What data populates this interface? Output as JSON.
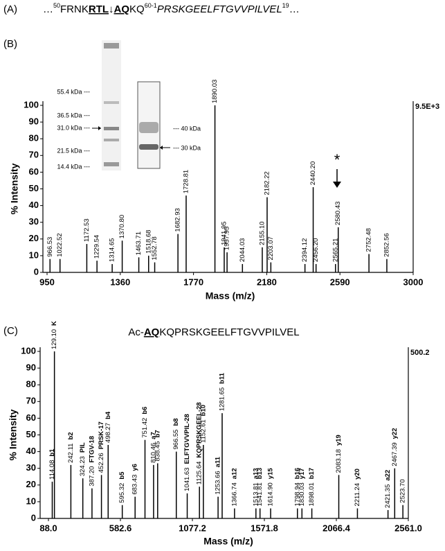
{
  "panel_a": {
    "label": "(A)",
    "parts": [
      "…",
      "50",
      "FRNK",
      "RTL",
      "↓",
      "AQ",
      "KQ",
      "60",
      "-1",
      "PRSKGEELFTGVVPILVEL",
      "19",
      "…"
    ]
  },
  "chart_data": [
    {
      "type": "stem",
      "panel": "(B)",
      "xlabel": "Mass (m/z)",
      "ylabel": "% Intensity",
      "scale_label": "9.5E+3",
      "marker": "*",
      "color": "#000000",
      "xlim": [
        950,
        3000
      ],
      "xticks": [
        950,
        1360,
        1770,
        2180,
        2590,
        3000
      ],
      "ylim": [
        0,
        100
      ],
      "yticks": [
        0,
        10,
        20,
        30,
        40,
        50,
        60,
        70,
        80,
        90,
        100
      ],
      "x": [
        966.53,
        1022.52,
        1172.53,
        1229.54,
        1314.65,
        1370.8,
        1463.71,
        1518.68,
        1552.78,
        1682.93,
        1728.81,
        1890.03,
        1941.95,
        1957.95,
        2044.03,
        2155.1,
        2182.22,
        2203.07,
        2394.12,
        2440.2,
        2456.2,
        2565.21,
        2580.43,
        2752.48,
        2852.56
      ],
      "x_labels": [
        "966.53",
        "1022.52",
        "1172.53",
        "1229.54",
        "1314.65",
        "1370.80",
        "1463.71",
        "1518.68",
        "1552.78",
        "1682.93",
        "1728.81",
        "1890.03",
        "1941.95",
        "1957.95",
        "2044.03",
        "2155.10",
        "2182.22",
        "2203.07",
        "2394.12",
        "2440.20",
        "2456.20",
        "2565.21",
        "2580.43",
        "2752.48",
        "2852.56"
      ],
      "values": [
        8,
        8,
        17,
        7,
        5,
        19,
        9,
        10,
        6,
        23,
        46,
        100,
        15,
        12,
        5,
        15,
        45,
        6,
        5,
        51,
        5,
        5,
        27,
        11,
        8
      ],
      "gel": {
        "left_markers": [
          "55.4 kDa ---",
          "36.5 kDa ---",
          "31.0 kDa ---",
          "21.5 kDa ---",
          "14.4 kDa ---"
        ],
        "right_markers": [
          "--- 40 kDa",
          "--- 30 kDa"
        ]
      }
    },
    {
      "type": "stem",
      "panel": "(C)",
      "title_parts": [
        "Ac-",
        "AQ",
        "KQPRSKGEELFTGVVPILVEL"
      ],
      "xlabel": "Mass (m/z)",
      "ylabel": "% Intensity",
      "scale_label": "500.2",
      "color": "#000000",
      "xlim": [
        88,
        2561
      ],
      "xticks": [
        {
          "value": 88,
          "label": "88.0"
        },
        {
          "value": 582.6,
          "label": "582.6"
        },
        {
          "value": 1077.2,
          "label": "1077.2"
        },
        {
          "value": 1571.8,
          "label": "1571.8"
        },
        {
          "value": 2066.4,
          "label": "2066.4"
        },
        {
          "value": 2561,
          "label": "2561.0"
        }
      ],
      "ylim": [
        0,
        100
      ],
      "yticks": [
        0,
        10,
        20,
        30,
        40,
        50,
        60,
        70,
        80,
        90,
        100
      ],
      "x": [
        114.08,
        129.1,
        242.11,
        324.23,
        387.2,
        452.26,
        498.27,
        595.32,
        683.43,
        751.42,
        810.46,
        838.45,
        966.55,
        1041.63,
        1125.64,
        1152.61,
        1253.66,
        1281.65,
        1366.74,
        1513.81,
        1541.81,
        1614.9,
        1798.94,
        1830.03,
        1898.01,
        2083.18,
        2211.24,
        2421.35,
        2467.39,
        2523.7
      ],
      "x_labels": [
        "114.08",
        "129.10",
        "242.11",
        "324.23",
        "387.20",
        "452.26",
        "498.27",
        "595.32",
        "683.43",
        "751.42",
        "810.46",
        "838.45",
        "966.55",
        "1041.63",
        "1125.64",
        "1152.61",
        "1253.66",
        "1281.65",
        "1366.74",
        "1513.81",
        "1541.81",
        "1614.90",
        "1798.94",
        "1830.03",
        "1898.01",
        "2083.18",
        "2211.24",
        "2421.35",
        "2467.39",
        "2523.70"
      ],
      "ion_labels": [
        "b1",
        "K",
        "b2",
        "PIL",
        "FTGV-18",
        "PRSK-17",
        "b4",
        "b5",
        "y6",
        "b6",
        "a7",
        "b7",
        "b8",
        "ELFTGVVPIL-28",
        "KQPRSKGEEL-28",
        "b10",
        "a11",
        "b11",
        "a12",
        "a13",
        "b13",
        "y15",
        "b16",
        "y17",
        "b17",
        "y19",
        "y20",
        "a22",
        "y22",
        null
      ],
      "values": [
        22,
        100,
        32,
        24,
        18,
        26,
        44,
        8,
        13,
        47,
        32,
        33,
        40,
        15,
        19,
        44,
        13,
        63,
        6,
        6,
        6,
        6,
        6,
        6,
        6,
        26,
        6,
        5,
        30,
        8
      ]
    }
  ]
}
